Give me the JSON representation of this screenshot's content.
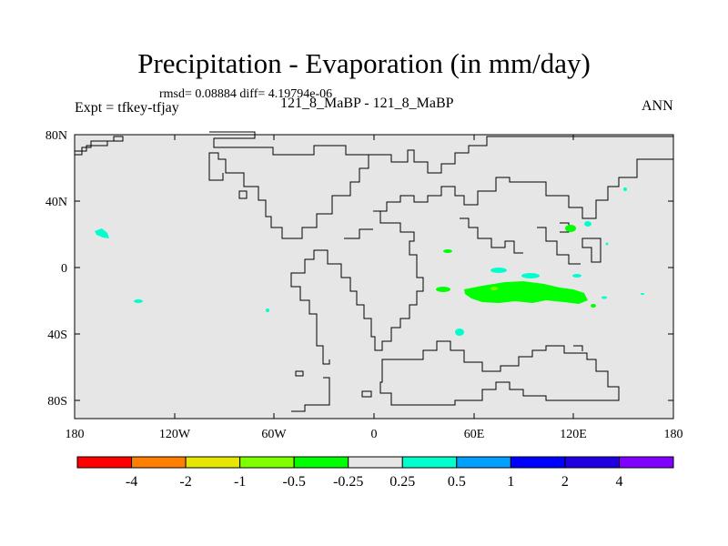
{
  "title": "Precipitation - Evaporation (in mm/day)",
  "stats": "rmsd= 0.08884  diff= 4.19794e-06",
  "experiment_label": "Expt = tfkey-tfjay",
  "case_label": "121_8_MaBP - 121_8_MaBP",
  "season": "ANN",
  "lat_ticks": [
    "80N",
    "40N",
    "0",
    "40S",
    "80S"
  ],
  "lon_ticks": [
    "180",
    "120W",
    "60W",
    "0",
    "60E",
    "120E",
    "180"
  ],
  "colorbar": {
    "colors": [
      "#ff0000",
      "#ff8000",
      "#e6e600",
      "#80ff00",
      "#00ff00",
      "#e6e6e6",
      "#00ffcc",
      "#00a0ff",
      "#0000ff",
      "#2000e0",
      "#8000ff"
    ],
    "labels": [
      "-4",
      "-2",
      "-1",
      "-0.5",
      "-0.25",
      "0.25",
      "0.5",
      "1",
      "2",
      "4"
    ]
  },
  "colors": {
    "background": "#e6e6e6",
    "positive_anomaly": "#00ffcc",
    "negative_anomaly": "#00ff00",
    "coast": "#000000"
  }
}
